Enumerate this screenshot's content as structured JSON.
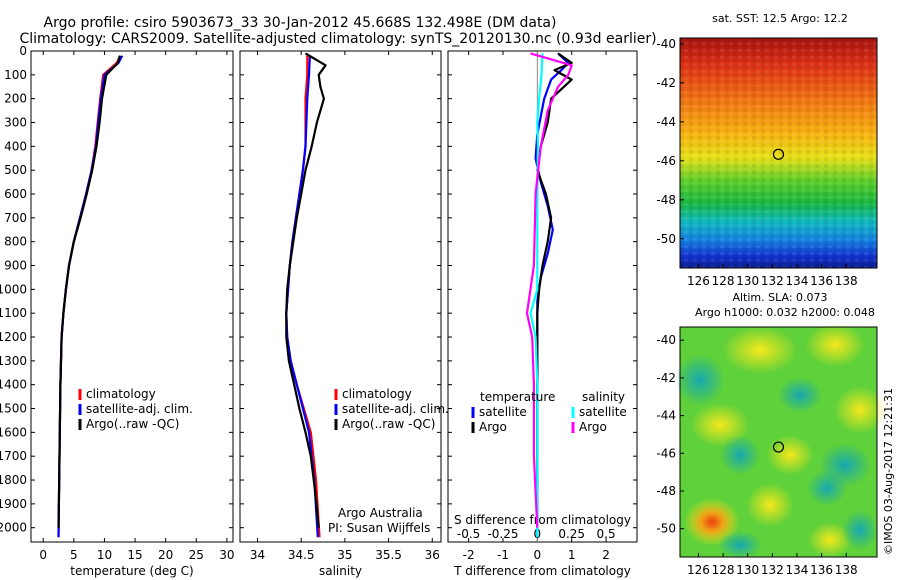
{
  "figure": {
    "title_line1": "Argo profile: csiro 5903673_33 30-Jan-2012 45.668S 132.498E (DM data)",
    "title_line2": "Climatology: CARS2009. Satellite-adjusted climatology: synTS_20120130.nc (0.93d earlier)",
    "attribution": "Argo Australia",
    "pi": "PI: Susan Wijffels",
    "watermark": "©IMOS 03-Aug-2017 12:21:31"
  },
  "colors": {
    "climatology": "#ff0000",
    "satellite": "#0000ff",
    "argo": "#000000",
    "sal_satellite": "#00ffff",
    "sal_argo": "#ff00ff"
  },
  "chart_data": [
    {
      "type": "line",
      "id": "temperature",
      "xlabel": "temperature (deg C)",
      "ylabel": "",
      "xlim": [
        -2,
        31
      ],
      "ylim": [
        2060,
        0
      ],
      "xticks": [
        0,
        5,
        10,
        15,
        20,
        25,
        30
      ],
      "yticks": [
        0,
        100,
        200,
        300,
        400,
        500,
        600,
        700,
        800,
        900,
        1000,
        1100,
        1200,
        1300,
        1400,
        1500,
        1600,
        1700,
        1800,
        1900,
        2000
      ],
      "legend": [
        "climatology",
        "satellite-adj. clim.",
        "Argo(..raw -QC)"
      ],
      "series": [
        {
          "name": "climatology",
          "color_key": "climatology",
          "x": [
            12.6,
            12.0,
            9.8,
            9.3,
            8.9,
            8.5,
            7.9,
            7.0,
            6.0,
            5.0,
            4.2,
            3.7,
            3.3,
            3.0,
            2.8,
            2.7,
            2.6,
            2.5
          ],
          "y": [
            20,
            50,
            100,
            200,
            300,
            400,
            500,
            600,
            700,
            800,
            900,
            1000,
            1100,
            1200,
            1400,
            1600,
            1800,
            2040
          ]
        },
        {
          "name": "satellite-adj. clim.",
          "color_key": "satellite",
          "x": [
            12.9,
            12.3,
            10.0,
            9.4,
            9.0,
            8.6,
            7.9,
            7.0,
            6.0,
            5.0,
            4.2,
            3.7,
            3.3,
            3.0,
            2.8,
            2.7,
            2.6,
            2.5
          ],
          "y": [
            20,
            50,
            100,
            200,
            300,
            400,
            500,
            600,
            700,
            800,
            900,
            1000,
            1100,
            1200,
            1400,
            1600,
            1800,
            2040
          ]
        },
        {
          "name": "Argo(..raw -QC)",
          "color_key": "argo",
          "x": [
            12.5,
            12.2,
            10.3,
            9.6,
            9.2,
            8.7,
            8.0,
            7.1,
            6.1,
            5.0,
            4.2,
            3.7,
            3.3,
            3.0,
            2.8,
            2.7,
            2.6,
            2.5
          ],
          "y": [
            20,
            50,
            100,
            200,
            300,
            400,
            500,
            600,
            700,
            800,
            900,
            1000,
            1100,
            1200,
            1400,
            1600,
            1800,
            2000
          ]
        }
      ]
    },
    {
      "type": "line",
      "id": "salinity",
      "xlabel": "salinity",
      "xlim": [
        33.8,
        36.1
      ],
      "ylim": [
        2060,
        0
      ],
      "xticks": [
        34,
        34.5,
        35,
        35.5,
        36
      ],
      "legend": [
        "climatology",
        "satellite-adj. clim.",
        "Argo(..raw -QC)"
      ],
      "series": [
        {
          "name": "climatology",
          "color_key": "climatology",
          "x": [
            34.57,
            34.57,
            34.55,
            34.55,
            34.55,
            34.52,
            34.48,
            34.44,
            34.4,
            34.37,
            34.35,
            34.33,
            34.34,
            34.38,
            34.45,
            34.53,
            34.61,
            34.67,
            34.71
          ],
          "y": [
            20,
            100,
            200,
            300,
            400,
            500,
            600,
            700,
            800,
            900,
            1000,
            1100,
            1200,
            1300,
            1400,
            1500,
            1600,
            1800,
            2040
          ]
        },
        {
          "name": "satellite-adj. clim.",
          "color_key": "satellite",
          "x": [
            34.6,
            34.59,
            34.57,
            34.56,
            34.55,
            34.52,
            34.48,
            34.44,
            34.4,
            34.37,
            34.35,
            34.33,
            34.34,
            34.38,
            34.45,
            34.52,
            34.59,
            34.65,
            34.69
          ],
          "y": [
            20,
            100,
            200,
            300,
            400,
            500,
            600,
            700,
            800,
            900,
            1000,
            1100,
            1200,
            1300,
            1400,
            1500,
            1600,
            1800,
            2040
          ]
        },
        {
          "name": "Argo(..raw -QC)",
          "color_key": "argo",
          "x": [
            34.55,
            34.78,
            34.7,
            34.72,
            34.76,
            34.68,
            34.62,
            34.55,
            34.5,
            34.45,
            34.41,
            34.37,
            34.34,
            34.33,
            34.33,
            34.36,
            34.42,
            34.48,
            34.55,
            34.61,
            34.66,
            34.7
          ],
          "y": [
            10,
            60,
            100,
            150,
            200,
            300,
            400,
            500,
            600,
            700,
            800,
            900,
            1000,
            1100,
            1200,
            1300,
            1400,
            1500,
            1600,
            1700,
            1850,
            2000
          ]
        }
      ]
    },
    {
      "type": "line",
      "id": "differences",
      "xlabel": "T difference from climatology",
      "xlabel_top": "S difference from climatology",
      "xlim": [
        -2.6,
        2.9
      ],
      "ylim": [
        2060,
        0
      ],
      "xticks": [
        -2,
        -1,
        0,
        1,
        2
      ],
      "xticks_salinity_labels": [
        "-0.5",
        "-0.25",
        "0",
        "0.25",
        "0.5"
      ],
      "xticks_salinity_t_positions": [
        -2,
        -1,
        0,
        1,
        2
      ],
      "legend_title_temperature": "temperature",
      "legend_title_salinity": "salinity",
      "legend": [
        {
          "label": "satellite",
          "color_key": "satellite"
        },
        {
          "label": "Argo",
          "color_key": "argo"
        },
        {
          "label": "satellite",
          "color_key": "sal_satellite"
        },
        {
          "label": "Argo",
          "color_key": "sal_argo"
        }
      ],
      "zero_line": 0,
      "series": [
        {
          "name": "temperature satellite",
          "color_key": "satellite",
          "x": [
            0.6,
            0.9,
            0.7,
            0.4,
            0.2,
            0.0,
            -0.05,
            0.1,
            0.3,
            0.45,
            0.3,
            0.1,
            0.0,
            0.0,
            0.0,
            0.0,
            0.0
          ],
          "y": [
            10,
            50,
            80,
            120,
            200,
            350,
            450,
            550,
            650,
            750,
            850,
            950,
            1050,
            1150,
            1300,
            1600,
            2040
          ]
        },
        {
          "name": "temperature Argo",
          "color_key": "argo",
          "x": [
            0.6,
            1.0,
            0.5,
            1.0,
            0.4,
            0.3,
            0.1,
            0.0,
            0.25,
            0.4,
            0.3,
            0.15,
            0.05,
            0.0,
            0.0,
            0.0,
            0.0
          ],
          "y": [
            10,
            50,
            80,
            120,
            200,
            300,
            400,
            500,
            600,
            700,
            800,
            900,
            1000,
            1100,
            1200,
            1400,
            2000
          ]
        },
        {
          "name": "salinity satellite",
          "color_key": "sal_satellite",
          "x": [
            0.15,
            0.12,
            0.05,
            0.0,
            0.02,
            0.0,
            0.0,
            0.0,
            -0.2,
            -0.05,
            0.0,
            0.0,
            0.0
          ],
          "y": [
            10,
            100,
            200,
            300,
            400,
            600,
            800,
            1000,
            1100,
            1200,
            1400,
            1600,
            2040
          ]
        },
        {
          "name": "salinity Argo",
          "color_key": "sal_argo",
          "x": [
            -0.2,
            1.0,
            0.9,
            0.6,
            0.3,
            0.1,
            -0.05,
            -0.1,
            -0.3,
            -0.15,
            -0.1,
            -0.1,
            0.0
          ],
          "y": [
            10,
            60,
            100,
            150,
            250,
            400,
            600,
            900,
            1100,
            1200,
            1400,
            1700,
            2000
          ]
        }
      ]
    },
    {
      "type": "heatmap",
      "id": "sst_map",
      "title": "sat. SST: 12.5 Argo: 12.2",
      "xlim": [
        124.5,
        140.5
      ],
      "ylim": [
        -51.5,
        -39.7
      ],
      "xticks": [
        126,
        128,
        130,
        132,
        134,
        136,
        138
      ],
      "yticks": [
        -40,
        -42,
        -44,
        -46,
        -48,
        -50
      ],
      "marker": {
        "lon": 132.498,
        "lat": -45.668
      }
    },
    {
      "type": "heatmap",
      "id": "sla_map",
      "title": "Altim. SLA: 0.073",
      "subtitle": "Argo h1000: 0.032 h2000: 0.048",
      "xlim": [
        124.5,
        140.5
      ],
      "ylim": [
        -51.5,
        -39.3
      ],
      "xticks": [
        126,
        128,
        130,
        132,
        134,
        136,
        138
      ],
      "yticks": [
        -40,
        -42,
        -44,
        -46,
        -48,
        -50
      ],
      "marker": {
        "lon": 132.498,
        "lat": -45.668
      }
    }
  ]
}
